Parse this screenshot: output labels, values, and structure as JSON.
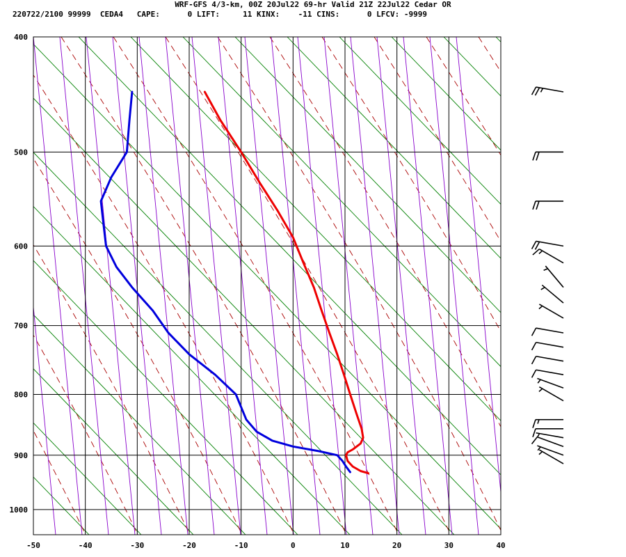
{
  "header": {
    "line1": "WRF-GFS 4/3-km, 00Z 20Jul22 69-hr Valid 21Z 22Jul22 Cedar OR",
    "line2": "220722/2100 99999  CEDA4   CAPE:      0 LIFT:     11 KINX:    -11 CINS:      0 LFCV: -9999"
  },
  "colors": {
    "temperature": "#ee0000",
    "dewpoint": "#0000dd",
    "isobar_isotherm": "#000000",
    "dry_adiabat": "#008000",
    "moist_adiabat": "#aa0000",
    "mixing_ratio": "#8800cc",
    "wind_barb": "#000000"
  },
  "chart_data": {
    "type": "line",
    "diagram": "skew-T log-P",
    "x_ticks": [
      "-50",
      "-40",
      "-30",
      "-20",
      "-10",
      "0",
      "10",
      "20",
      "30",
      "40"
    ],
    "y_ticks": [
      "400",
      "500",
      "600",
      "700",
      "800",
      "900",
      "1000"
    ],
    "pressure_range": [
      1050,
      400
    ],
    "temperature_range": [
      -50,
      40
    ],
    "grid": true,
    "series": [
      {
        "key": "temperature",
        "points": [
          [
            445,
            -17
          ],
          [
            470,
            -14
          ],
          [
            500,
            -10
          ],
          [
            530,
            -6.5
          ],
          [
            560,
            -3
          ],
          [
            590,
            0
          ],
          [
            620,
            2
          ],
          [
            650,
            4
          ],
          [
            680,
            5.5
          ],
          [
            710,
            7
          ],
          [
            740,
            8.5
          ],
          [
            770,
            9.8
          ],
          [
            800,
            11
          ],
          [
            830,
            12.2
          ],
          [
            855,
            13.2
          ],
          [
            870,
            13.5
          ],
          [
            880,
            13
          ],
          [
            890,
            11.5
          ],
          [
            895,
            10.5
          ],
          [
            900,
            10.2
          ],
          [
            910,
            10.5
          ],
          [
            920,
            11.5
          ],
          [
            928,
            13
          ],
          [
            932,
            14.5
          ]
        ]
      },
      {
        "key": "dewpoint",
        "points": [
          [
            445,
            -31
          ],
          [
            470,
            -31.5
          ],
          [
            500,
            -32
          ],
          [
            525,
            -35
          ],
          [
            550,
            -37
          ],
          [
            575,
            -36.5
          ],
          [
            600,
            -36
          ],
          [
            625,
            -34
          ],
          [
            650,
            -31
          ],
          [
            680,
            -27
          ],
          [
            710,
            -24
          ],
          [
            740,
            -20
          ],
          [
            770,
            -15
          ],
          [
            800,
            -11
          ],
          [
            820,
            -10
          ],
          [
            840,
            -9
          ],
          [
            860,
            -7
          ],
          [
            875,
            -4
          ],
          [
            885,
            0
          ],
          [
            893,
            5
          ],
          [
            900,
            8.5
          ],
          [
            910,
            9.5
          ],
          [
            920,
            10.2
          ],
          [
            930,
            11
          ]
        ]
      }
    ],
    "wind_barbs": [
      {
        "p": 445,
        "dir": 280,
        "spd": 25
      },
      {
        "p": 500,
        "dir": 270,
        "spd": 20
      },
      {
        "p": 550,
        "dir": 270,
        "spd": 20
      },
      {
        "p": 600,
        "dir": 280,
        "spd": 20
      },
      {
        "p": 620,
        "dir": 300,
        "spd": 15
      },
      {
        "p": 650,
        "dir": 320,
        "spd": 5
      },
      {
        "p": 670,
        "dir": 310,
        "spd": 5
      },
      {
        "p": 690,
        "dir": 300,
        "spd": 5
      },
      {
        "p": 710,
        "dir": 280,
        "spd": 10
      },
      {
        "p": 730,
        "dir": 280,
        "spd": 10
      },
      {
        "p": 750,
        "dir": 280,
        "spd": 10
      },
      {
        "p": 770,
        "dir": 280,
        "spd": 10
      },
      {
        "p": 790,
        "dir": 290,
        "spd": 5
      },
      {
        "p": 810,
        "dir": 300,
        "spd": 5
      },
      {
        "p": 840,
        "dir": 270,
        "spd": 15
      },
      {
        "p": 855,
        "dir": 270,
        "spd": 10
      },
      {
        "p": 870,
        "dir": 280,
        "spd": 5
      },
      {
        "p": 885,
        "dir": 290,
        "spd": 10
      },
      {
        "p": 900,
        "dir": 290,
        "spd": 5
      },
      {
        "p": 915,
        "dir": 300,
        "spd": 5
      }
    ]
  }
}
